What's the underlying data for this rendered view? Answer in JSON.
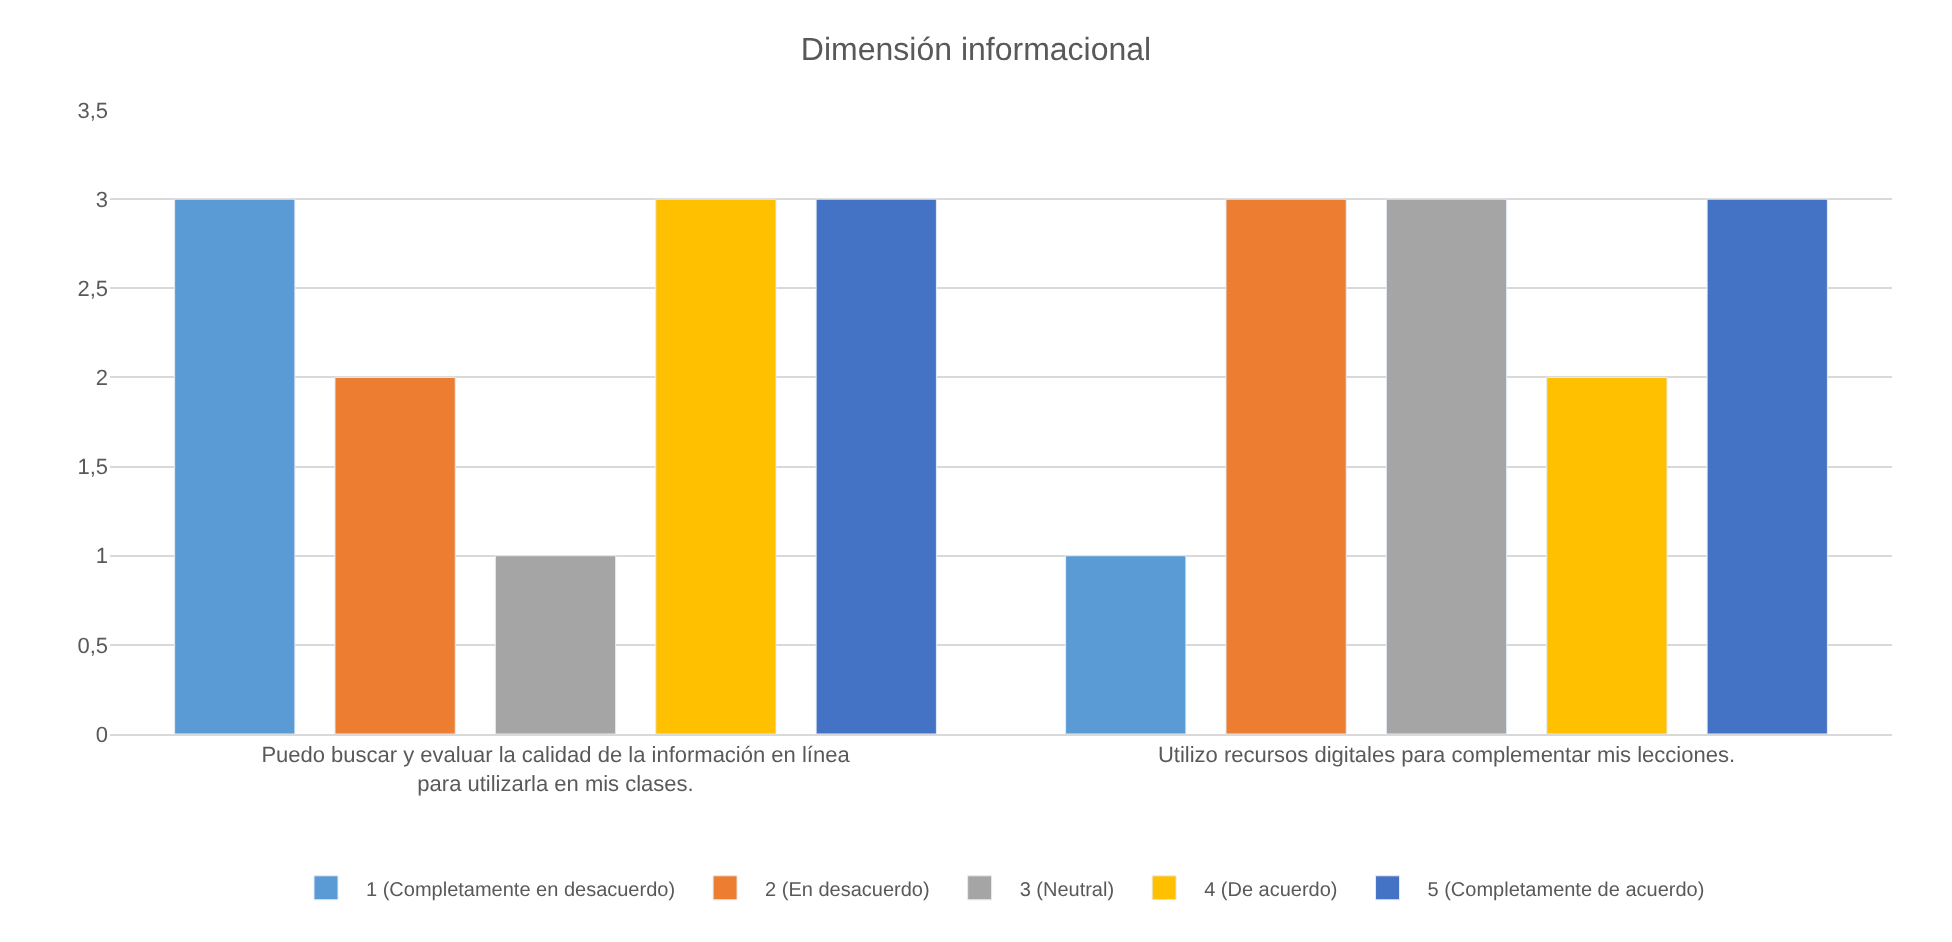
{
  "chart_data": {
    "type": "bar",
    "title": "Dimensión informacional",
    "categories": [
      "Puedo buscar y evaluar la calidad de la información en línea para utilizarla en mis clases.",
      "Utilizo recursos digitales para complementar mis lecciones."
    ],
    "series": [
      {
        "name": "1 (Completamente en desacuerdo)",
        "color": "#5b9bd5",
        "values": [
          3,
          1
        ]
      },
      {
        "name": "2 (En desacuerdo)",
        "color": "#ed7d31",
        "values": [
          2,
          3
        ]
      },
      {
        "name": "3 (Neutral)",
        "color": "#a5a5a5",
        "values": [
          1,
          3
        ]
      },
      {
        "name": "4 (De acuerdo)",
        "color": "#ffc000",
        "values": [
          3,
          2
        ]
      },
      {
        "name": "5 (Completamente de acuerdo)",
        "color": "#4472c4",
        "values": [
          3,
          3
        ]
      }
    ],
    "ylim": [
      0,
      3.5
    ],
    "yticks": [
      0,
      {
        "value": 0.5,
        "label": "0,5"
      },
      1,
      {
        "value": 1.5,
        "label": "1,5"
      },
      2,
      {
        "value": 2.5,
        "label": "2,5"
      },
      3,
      {
        "value": 3.5,
        "label": "3,5"
      }
    ],
    "grid": "y",
    "legend": "bottom"
  }
}
